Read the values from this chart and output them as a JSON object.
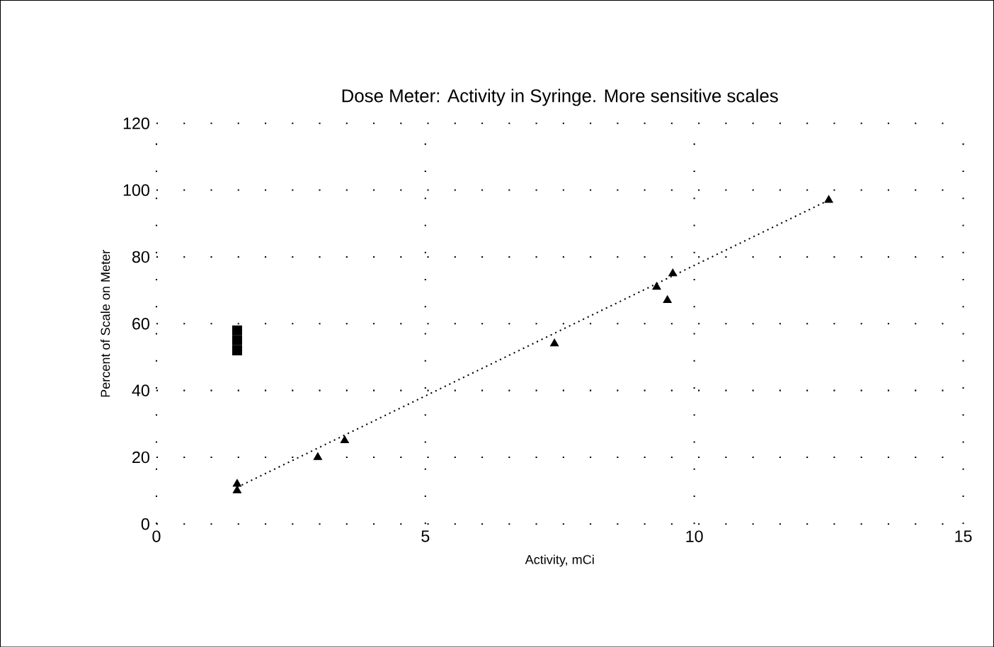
{
  "chart_data": {
    "type": "scatter",
    "title": "Dose Meter: Activity in Syringe. More sensitive scales",
    "xlabel": "Activity, mCi",
    "ylabel": "Percent of Scale on Meter",
    "xlim": [
      0,
      15
    ],
    "xticks": [
      0,
      5,
      10,
      15
    ],
    "ylim": [
      0,
      120
    ],
    "yticks": [
      0,
      20,
      40,
      60,
      80,
      100,
      120
    ],
    "grid": true,
    "series": [
      {
        "marker": "triangle",
        "color": "#000000",
        "x": [
          1.5,
          1.5,
          3.0,
          3.5,
          7.4,
          9.3,
          9.5,
          9.6,
          12.5
        ],
        "values": [
          10,
          12,
          20,
          25,
          54,
          71,
          67,
          75,
          97
        ]
      },
      {
        "marker": "square",
        "color": "#000000",
        "x": [
          1.5,
          1.5,
          1.5
        ],
        "values": [
          52,
          55,
          58
        ]
      },
      {
        "type": "line",
        "marker": "none",
        "line_style": "dotted",
        "color": "#000000",
        "x": [
          1.5,
          12.5
        ],
        "values": [
          11,
          97
        ]
      }
    ]
  }
}
